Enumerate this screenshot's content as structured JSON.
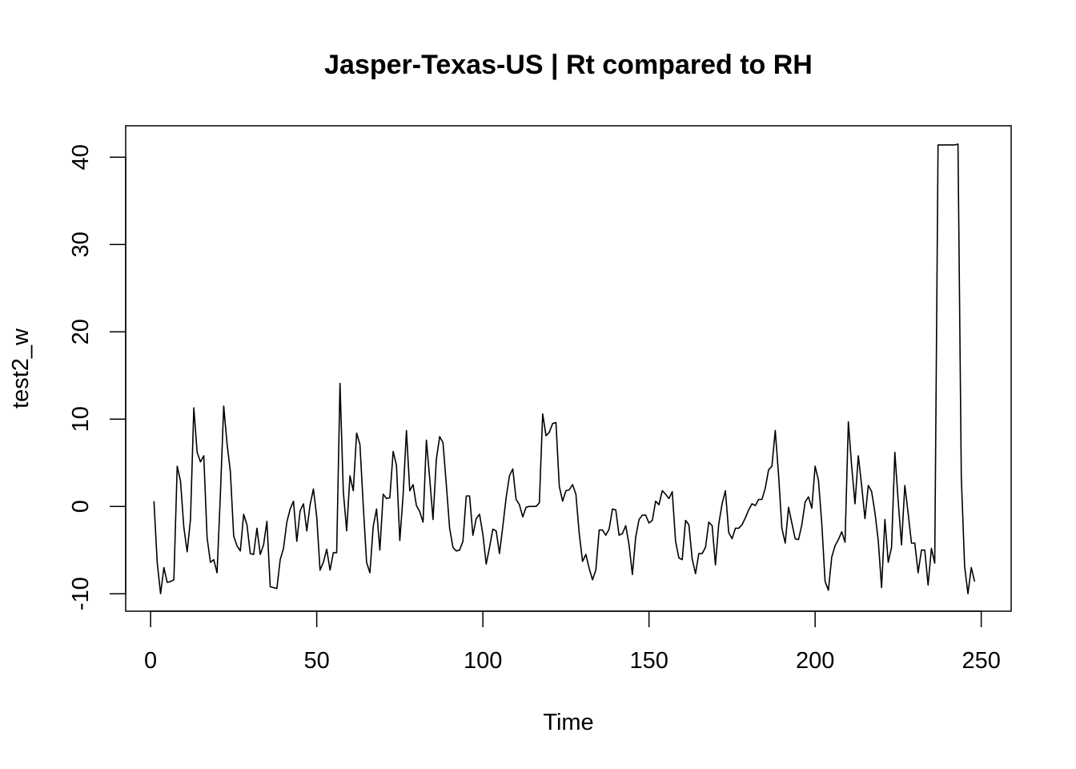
{
  "chart_data": {
    "type": "line",
    "title": "Jasper-Texas-US | Rt compared to RH",
    "xlabel": "Time",
    "ylabel": "test2_w",
    "xlim": [
      -7.5,
      259
    ],
    "ylim": [
      -12,
      43.6
    ],
    "x_ticks": [
      0,
      50,
      100,
      150,
      200,
      250
    ],
    "y_ticks": [
      -10,
      0,
      10,
      20,
      30,
      40
    ],
    "x_tick_labels": [
      "0",
      "50",
      "100",
      "150",
      "200",
      "250"
    ],
    "y_tick_labels": [
      "-10",
      "0",
      "10",
      "20",
      "30",
      "40"
    ],
    "grid": false,
    "line_color": "#000000",
    "x_start": 1,
    "values": [
      0.6,
      -6.5,
      -10.0,
      -7.0,
      -8.7,
      -8.6,
      -8.4,
      4.6,
      2.9,
      -2.4,
      -5.2,
      -1.5,
      11.3,
      6.2,
      5.1,
      5.8,
      -3.6,
      -6.4,
      -6.1,
      -7.6,
      1.4,
      11.5,
      7.2,
      4.0,
      -3.4,
      -4.5,
      -5.1,
      -0.9,
      -2.1,
      -5.4,
      -5.5,
      -2.5,
      -5.5,
      -4.4,
      -1.7,
      -9.2,
      -9.3,
      -9.4,
      -6.1,
      -4.8,
      -1.8,
      -0.3,
      0.6,
      -4.0,
      -0.5,
      0.3,
      -2.8,
      0.2,
      2.0,
      -1.2,
      -7.3,
      -6.4,
      -4.9,
      -7.3,
      -5.3,
      -5.3,
      14.1,
      1.7,
      -2.8,
      3.5,
      1.8,
      8.4,
      7.1,
      0.1,
      -6.4,
      -7.6,
      -2.3,
      -0.3,
      -5.0,
      1.4,
      0.9,
      1.0,
      6.3,
      4.7,
      -3.9,
      1.3,
      8.7,
      1.8,
      2.5,
      0.1,
      -0.6,
      -1.8,
      7.6,
      3.2,
      -1.5,
      5.4,
      8.0,
      7.3,
      2.5,
      -2.5,
      -4.7,
      -5.1,
      -5.0,
      -4.0,
      1.2,
      1.2,
      -3.3,
      -1.4,
      -0.9,
      -3.2,
      -6.6,
      -4.7,
      -2.6,
      -2.8,
      -5.4,
      -2.3,
      1.0,
      3.5,
      4.3,
      0.8,
      0.2,
      -1.2,
      -0.1,
      0.0,
      0.0,
      0.0,
      0.4,
      10.6,
      8.1,
      8.5,
      9.5,
      9.6,
      2.3,
      0.6,
      1.8,
      1.9,
      2.5,
      1.4,
      -3.1,
      -6.3,
      -5.5,
      -7.1,
      -8.4,
      -7.3,
      -2.7,
      -2.7,
      -3.3,
      -2.6,
      -0.3,
      -0.4,
      -3.3,
      -3.1,
      -2.2,
      -4.4,
      -7.8,
      -3.5,
      -1.5,
      -1.0,
      -1.0,
      -1.9,
      -1.6,
      0.6,
      0.2,
      1.8,
      1.4,
      0.9,
      1.7,
      -4.0,
      -5.9,
      -6.1,
      -1.6,
      -2.1,
      -6.0,
      -7.7,
      -5.4,
      -5.4,
      -4.7,
      -1.8,
      -2.2,
      -6.7,
      -2.0,
      0.3,
      1.8,
      -3.0,
      -3.7,
      -2.5,
      -2.5,
      -2.1,
      -1.3,
      -0.4,
      0.3,
      0.1,
      0.8,
      0.8,
      2.1,
      4.2,
      4.6,
      8.7,
      3.6,
      -2.5,
      -4.2,
      -0.1,
      -1.9,
      -3.7,
      -3.8,
      -2.1,
      0.5,
      1.1,
      -0.2,
      4.6,
      3.0,
      -1.9,
      -8.6,
      -9.6,
      -5.8,
      -4.5,
      -3.8,
      -2.9,
      -4.1,
      9.7,
      4.6,
      0.3,
      5.8,
      2.4,
      -1.4,
      2.4,
      1.7,
      -0.7,
      -3.9,
      -9.3,
      -1.5,
      -6.4,
      -4.7,
      6.2,
      0.6,
      -4.4,
      2.4,
      -0.8,
      -4.2,
      -4.2,
      -7.6,
      -5.0,
      -5.0,
      -9.0,
      -4.8,
      -6.5,
      41.4,
      41.4,
      41.4,
      41.4,
      41.4,
      41.4,
      41.5,
      3.3,
      -6.9,
      -10.0,
      -7.0,
      -8.6
    ]
  }
}
